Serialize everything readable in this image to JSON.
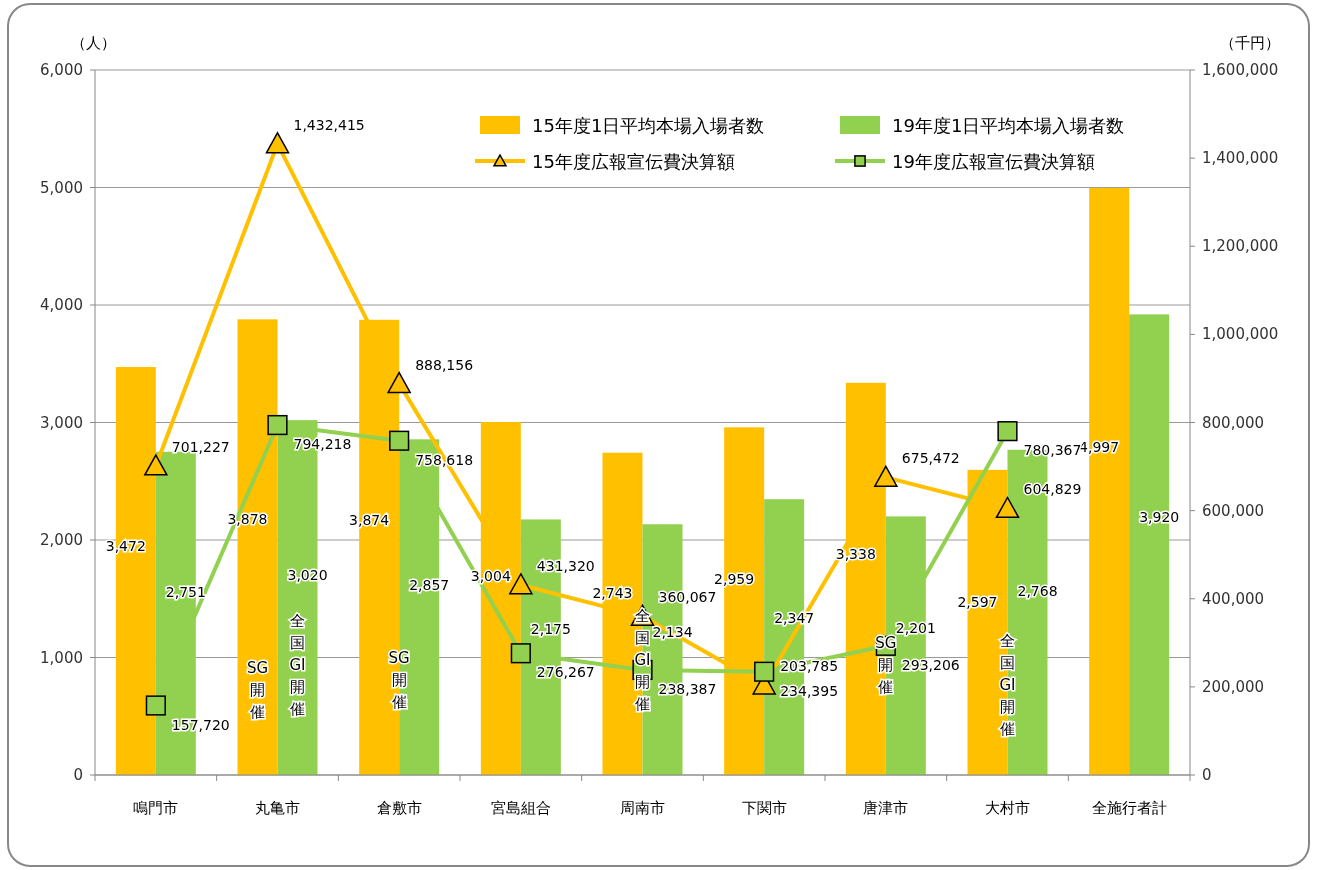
{
  "chart_data": {
    "type": "bar",
    "ylabel": "（人）",
    "y2label": "（千円）",
    "categories": [
      "鳴門市",
      "丸亀市",
      "倉敷市",
      "宮島組合",
      "周南市",
      "下関市",
      "唐津市",
      "大村市",
      "全施行者計"
    ],
    "series": [
      {
        "name": "15年度1日平均本場入場者数",
        "color": "#ffc000",
        "values": [
          3472,
          3878,
          3874,
          3004,
          2743,
          2959,
          3338,
          2597,
          4997
        ],
        "value_labels": [
          "3,472",
          "3,878",
          "3,874",
          "3,004",
          "2,743",
          "2,959",
          "3,338",
          "2,597",
          "4,997"
        ]
      },
      {
        "name": "19年度1日平均本場入場者数",
        "color": "#92d050",
        "values": [
          2751,
          3020,
          2857,
          2175,
          2134,
          2347,
          2201,
          2768,
          3920
        ],
        "value_labels": [
          "2,751",
          "3,020",
          "2,857",
          "2,175",
          "2,134",
          "2,347",
          "2,201",
          "2,768",
          "3,920"
        ]
      },
      {
        "name": "15年度広報宣伝費決算額",
        "type": "line",
        "axis": "y2",
        "marker": "triangle",
        "color": "#ffc000",
        "values": [
          701227,
          1432415,
          888156,
          431320,
          360067,
          203785,
          675472,
          604829,
          null
        ],
        "value_labels": [
          "701,227",
          "1,432,415",
          "888,156",
          "431,320",
          "360,067",
          "203,785",
          "675,472",
          "604,829",
          null
        ]
      },
      {
        "name": "19年度広報宣伝費決算額",
        "type": "line",
        "axis": "y2",
        "marker": "square",
        "color": "#92d050",
        "values": [
          157720,
          794218,
          758618,
          276267,
          238387,
          234395,
          293206,
          780367,
          null
        ],
        "value_labels": [
          "157,720",
          "794,218",
          "758,618",
          "276,267",
          "238,387",
          "234,395",
          "293,206",
          "780,367",
          null
        ]
      }
    ],
    "ylim": [
      0,
      6000
    ],
    "yticks": [
      {
        "value": 0,
        "label": "0"
      },
      {
        "value": 1000,
        "label": "1,000"
      },
      {
        "value": 2000,
        "label": "2,000"
      },
      {
        "value": 3000,
        "label": "3,000"
      },
      {
        "value": 4000,
        "label": "4,000"
      },
      {
        "value": 5000,
        "label": "5,000"
      },
      {
        "value": 6000,
        "label": "6,000"
      }
    ],
    "y2lim": [
      0,
      1600000
    ],
    "y2ticks": [
      {
        "value": 0,
        "label": "0"
      },
      {
        "value": 200000,
        "label": "200,000"
      },
      {
        "value": 400000,
        "label": "400,000"
      },
      {
        "value": 600000,
        "label": "600,000"
      },
      {
        "value": 800000,
        "label": "800,000"
      },
      {
        "value": 1000000,
        "label": "1,000,000"
      },
      {
        "value": 1200000,
        "label": "1,200,000"
      },
      {
        "value": 1400000,
        "label": "1,400,000"
      },
      {
        "value": 1600000,
        "label": "1,600,000"
      }
    ],
    "grid": "y",
    "legend": "top right",
    "annotations": [
      {
        "text": "SG開催",
        "x": "丸亀市",
        "y": 720
      },
      {
        "text": "全国GI開催",
        "x": "丸亀市",
        "y": 940
      },
      {
        "text": "SG開催",
        "x": "倉敷市",
        "y": 810
      },
      {
        "text": "全国GI開催",
        "x": "周南市",
        "y": 980
      },
      {
        "text": "SG開催",
        "x": "唐津市",
        "y": 940
      },
      {
        "text": "全国GI開催",
        "x": "大村市",
        "y": 770
      }
    ]
  }
}
